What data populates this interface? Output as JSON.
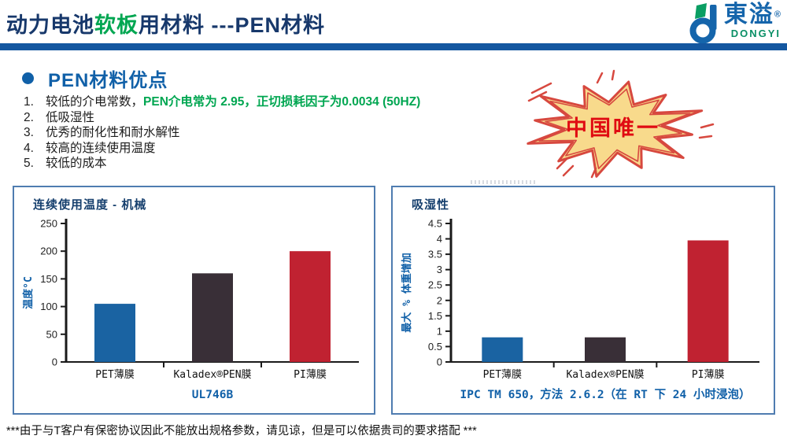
{
  "header": {
    "title_prefix": "动力电池",
    "title_green": "软板",
    "title_suffix": "用材料 ---PEN材料"
  },
  "logo": {
    "cjk": "東溢",
    "reg": "®",
    "latin": "DONGYI"
  },
  "section": {
    "title": "PEN材料优点"
  },
  "advantages": [
    {
      "num": "1.",
      "text": "较低的介电常数，",
      "highlight": "PEN介电常为 2.95，正切损耗因子为0.0034 (50HZ)"
    },
    {
      "num": "2.",
      "text": "低吸湿性"
    },
    {
      "num": "3.",
      "text": "优秀的耐化性和耐水解性"
    },
    {
      "num": "4.",
      "text": "较高的连续使用温度"
    },
    {
      "num": "5.",
      "text": "较低的成本"
    }
  ],
  "badge": {
    "text": "中国唯一"
  },
  "footer": {
    "note": "***由于与T客户有保密协议因此不能放出规格参数，请见谅，但是可以依据贵司的要求搭配 ***"
  },
  "colors": {
    "navy": "#17386b",
    "blue": "#1060a8",
    "green": "#00a651",
    "divider": "#1457a0",
    "panel_border": "#4f7cb0",
    "axis": "#1a1a1a",
    "tick_text": "#222222",
    "bar_blue": "#1a63a2",
    "bar_dark": "#392f37",
    "bar_red": "#c02231",
    "badge_fill": "#f8da8c",
    "badge_stroke": "#d7483f",
    "badge_text": "#e00b12"
  },
  "chart_data": [
    {
      "type": "bar",
      "title": "连续使用温度 - 机械",
      "categories": [
        "PET薄膜",
        "Kaladex®PEN膜",
        "PI薄膜"
      ],
      "values": [
        105,
        160,
        200
      ],
      "bar_colors": [
        "#1a63a2",
        "#392f37",
        "#c02231"
      ],
      "xlabel": "UL746B",
      "ylabel": "温度°C",
      "ylim": [
        0,
        250
      ],
      "ystep": 50,
      "grid": false,
      "legend": "none"
    },
    {
      "type": "bar",
      "title": "吸湿性",
      "categories": [
        "PET薄膜",
        "Kaladex®PEN膜",
        "PI薄膜"
      ],
      "values": [
        0.8,
        0.8,
        3.95
      ],
      "bar_colors": [
        "#1a63a2",
        "#392f37",
        "#c02231"
      ],
      "xlabel": "IPC TM 650，方法 2.6.2（在 RT 下 24 小时浸泡）",
      "ylabel": "最大 % 体重增加",
      "ylim": [
        0,
        4.5
      ],
      "ystep": 0.5,
      "grid": false,
      "legend": "none"
    }
  ]
}
